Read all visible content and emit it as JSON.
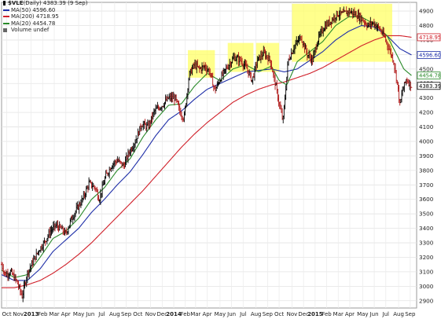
{
  "legend": {
    "symbol": "$VLE",
    "title_rest": " (Daily) 4383.39 (9 Sep)",
    "items": [
      {
        "label": "MA(50) 4596.60",
        "color": "#1f2fa8"
      },
      {
        "label": "MA(200) 4718.95",
        "color": "#d0202a"
      },
      {
        "label": "MA(20) 4454.78",
        "color": "#2a8a2a"
      },
      {
        "label": "Volume undef",
        "color": "#666666"
      }
    ]
  },
  "chart_data": {
    "type": "line",
    "title": "$VLE (Daily) 4383.39 (9 Sep)",
    "xlabel": "",
    "ylabel": "",
    "ylim": [
      2850,
      4960
    ],
    "grid": true,
    "legend_position": "top-left",
    "y_ticks": [
      2900,
      3000,
      3100,
      3200,
      3300,
      3400,
      3500,
      3600,
      3700,
      3800,
      3900,
      4000,
      4100,
      4200,
      4300,
      4400,
      4500,
      4600,
      4700,
      4800,
      4900
    ],
    "y_tick_labels": [
      "2900",
      "3000",
      "3100",
      "3200",
      "3300",
      "3400",
      "3500",
      "3600",
      "3700",
      "3800",
      "3900",
      "4000",
      "4100",
      "4200",
      "4300",
      "4400",
      "4500",
      "4600",
      "4700",
      "4800",
      "4900"
    ],
    "x_labels": [
      {
        "label": "Oct",
        "pos": 0.4
      },
      {
        "label": "Nov",
        "pos": 1.3
      },
      {
        "label": "2013",
        "pos": 2.3,
        "bold": true
      },
      {
        "label": "Feb",
        "pos": 3.2
      },
      {
        "label": "Mar",
        "pos": 4.1
      },
      {
        "label": "Apr",
        "pos": 5.0
      },
      {
        "label": "May",
        "pos": 6.0
      },
      {
        "label": "Jun",
        "pos": 6.9
      },
      {
        "label": "Jul",
        "pos": 7.8
      },
      {
        "label": "Aug",
        "pos": 8.8
      },
      {
        "label": "Sep",
        "pos": 9.7
      },
      {
        "label": "Oct",
        "pos": 10.6
      },
      {
        "label": "Nov",
        "pos": 11.6
      },
      {
        "label": "Dec",
        "pos": 12.5
      },
      {
        "label": "2014",
        "pos": 13.4,
        "bold": true
      },
      {
        "label": "Feb",
        "pos": 14.3
      },
      {
        "label": "Mar",
        "pos": 15.1
      },
      {
        "label": "Apr",
        "pos": 16.0
      },
      {
        "label": "May",
        "pos": 17.0
      },
      {
        "label": "Jun",
        "pos": 17.9
      },
      {
        "label": "Jul",
        "pos": 18.8
      },
      {
        "label": "Aug",
        "pos": 19.8
      },
      {
        "label": "Sep",
        "pos": 20.7
      },
      {
        "label": "Oct",
        "pos": 21.6
      },
      {
        "label": "Nov",
        "pos": 22.6
      },
      {
        "label": "Dec",
        "pos": 23.5
      },
      {
        "label": "2015",
        "pos": 24.4,
        "bold": true
      },
      {
        "label": "Feb",
        "pos": 25.3
      },
      {
        "label": "Mar",
        "pos": 26.2
      },
      {
        "label": "Apr",
        "pos": 27.1
      },
      {
        "label": "May",
        "pos": 28.1
      },
      {
        "label": "Jun",
        "pos": 29.0
      },
      {
        "label": "Jul",
        "pos": 29.9
      },
      {
        "label": "Aug",
        "pos": 30.9
      },
      {
        "label": "Sep",
        "pos": 31.8
      }
    ],
    "x_range": [
      0,
      32.3
    ],
    "highlight_zones": [
      {
        "x0": 14.5,
        "x1": 16.6,
        "y0": 4440,
        "y1": 4630
      },
      {
        "x0": 17.6,
        "x1": 19.6,
        "y0": 4480,
        "y1": 4680
      },
      {
        "x0": 19.8,
        "x1": 21.6,
        "y0": 4480,
        "y1": 4680
      },
      {
        "x0": 22.6,
        "x1": 30.4,
        "y0": 4550,
        "y1": 4950
      }
    ],
    "price_anchors": [
      [
        0,
        3150
      ],
      [
        0.3,
        3080
      ],
      [
        0.7,
        3100
      ],
      [
        1.2,
        3030
      ],
      [
        1.6,
        2930
      ],
      [
        2.0,
        3090
      ],
      [
        2.5,
        3180
      ],
      [
        2.9,
        3250
      ],
      [
        3.3,
        3300
      ],
      [
        3.8,
        3380
      ],
      [
        4.2,
        3420
      ],
      [
        4.6,
        3400
      ],
      [
        5.0,
        3360
      ],
      [
        5.4,
        3460
      ],
      [
        5.9,
        3540
      ],
      [
        6.3,
        3600
      ],
      [
        6.8,
        3710
      ],
      [
        7.3,
        3680
      ],
      [
        7.6,
        3600
      ],
      [
        8.1,
        3760
      ],
      [
        8.6,
        3840
      ],
      [
        9.0,
        3870
      ],
      [
        9.5,
        3830
      ],
      [
        9.9,
        3920
      ],
      [
        10.4,
        4000
      ],
      [
        10.9,
        4120
      ],
      [
        11.4,
        4100
      ],
      [
        11.9,
        4210
      ],
      [
        12.5,
        4250
      ],
      [
        13.0,
        4300
      ],
      [
        13.5,
        4300
      ],
      [
        13.9,
        4200
      ],
      [
        14.2,
        4160
      ],
      [
        14.6,
        4460
      ],
      [
        15.0,
        4530
      ],
      [
        15.4,
        4500
      ],
      [
        15.8,
        4520
      ],
      [
        16.2,
        4480
      ],
      [
        16.6,
        4350
      ],
      [
        17.0,
        4430
      ],
      [
        17.6,
        4520
      ],
      [
        18.1,
        4580
      ],
      [
        18.6,
        4560
      ],
      [
        19.1,
        4500
      ],
      [
        19.5,
        4420
      ],
      [
        19.9,
        4560
      ],
      [
        20.4,
        4610
      ],
      [
        20.9,
        4560
      ],
      [
        21.3,
        4400
      ],
      [
        21.6,
        4260
      ],
      [
        21.9,
        4140
      ],
      [
        22.3,
        4560
      ],
      [
        22.8,
        4660
      ],
      [
        23.3,
        4720
      ],
      [
        23.8,
        4600
      ],
      [
        24.2,
        4560
      ],
      [
        24.6,
        4700
      ],
      [
        25.1,
        4790
      ],
      [
        25.6,
        4830
      ],
      [
        26.1,
        4880
      ],
      [
        26.6,
        4880
      ],
      [
        27.0,
        4900
      ],
      [
        27.5,
        4880
      ],
      [
        28.0,
        4850
      ],
      [
        28.5,
        4800
      ],
      [
        28.9,
        4820
      ],
      [
        29.4,
        4780
      ],
      [
        29.8,
        4720
      ],
      [
        30.2,
        4630
      ],
      [
        30.5,
        4560
      ],
      [
        30.8,
        4400
      ],
      [
        31.0,
        4250
      ],
      [
        31.2,
        4350
      ],
      [
        31.5,
        4430
      ],
      [
        31.9,
        4383
      ]
    ],
    "ma_series": [
      {
        "name": "MA(20)",
        "color": "#2a8a2a",
        "anchors": [
          [
            0,
            3110
          ],
          [
            1.0,
            3060
          ],
          [
            2.0,
            3080
          ],
          [
            3.0,
            3200
          ],
          [
            4.0,
            3330
          ],
          [
            5.0,
            3380
          ],
          [
            6.0,
            3470
          ],
          [
            7.0,
            3600
          ],
          [
            8.0,
            3680
          ],
          [
            9.0,
            3800
          ],
          [
            10.0,
            3880
          ],
          [
            11.0,
            4030
          ],
          [
            12.0,
            4150
          ],
          [
            13.0,
            4250
          ],
          [
            14.0,
            4260
          ],
          [
            15.0,
            4380
          ],
          [
            16.0,
            4470
          ],
          [
            17.0,
            4420
          ],
          [
            18.0,
            4500
          ],
          [
            19.0,
            4530
          ],
          [
            20.0,
            4480
          ],
          [
            21.0,
            4520
          ],
          [
            21.6,
            4420
          ],
          [
            22.2,
            4390
          ],
          [
            23.0,
            4550
          ],
          [
            24.0,
            4620
          ],
          [
            25.0,
            4690
          ],
          [
            26.0,
            4800
          ],
          [
            27.0,
            4860
          ],
          [
            28.0,
            4860
          ],
          [
            29.0,
            4810
          ],
          [
            30.0,
            4730
          ],
          [
            30.8,
            4590
          ],
          [
            31.3,
            4500
          ],
          [
            31.9,
            4455
          ]
        ]
      },
      {
        "name": "MA(50)",
        "color": "#1f2fa8",
        "anchors": [
          [
            0,
            3080
          ],
          [
            1.0,
            3040
          ],
          [
            2.0,
            3040
          ],
          [
            3.0,
            3120
          ],
          [
            4.0,
            3240
          ],
          [
            5.0,
            3320
          ],
          [
            6.0,
            3400
          ],
          [
            7.0,
            3510
          ],
          [
            8.0,
            3600
          ],
          [
            9.0,
            3700
          ],
          [
            10.0,
            3790
          ],
          [
            11.0,
            3910
          ],
          [
            12.0,
            4040
          ],
          [
            13.0,
            4150
          ],
          [
            14.0,
            4210
          ],
          [
            15.0,
            4290
          ],
          [
            16.0,
            4360
          ],
          [
            17.0,
            4400
          ],
          [
            18.0,
            4440
          ],
          [
            19.0,
            4480
          ],
          [
            20.0,
            4490
          ],
          [
            21.0,
            4500
          ],
          [
            22.0,
            4480
          ],
          [
            23.0,
            4500
          ],
          [
            24.0,
            4560
          ],
          [
            25.0,
            4620
          ],
          [
            26.0,
            4700
          ],
          [
            27.0,
            4760
          ],
          [
            28.0,
            4800
          ],
          [
            29.0,
            4790
          ],
          [
            30.0,
            4730
          ],
          [
            31.0,
            4640
          ],
          [
            31.9,
            4597
          ]
        ]
      },
      {
        "name": "MA(200)",
        "color": "#d0202a",
        "anchors": [
          [
            0,
            2990
          ],
          [
            1.0,
            2990
          ],
          [
            2.0,
            3010
          ],
          [
            3.0,
            3040
          ],
          [
            4.0,
            3090
          ],
          [
            5.0,
            3150
          ],
          [
            6.0,
            3220
          ],
          [
            7.0,
            3300
          ],
          [
            8.0,
            3390
          ],
          [
            9.0,
            3480
          ],
          [
            10.0,
            3570
          ],
          [
            11.0,
            3660
          ],
          [
            12.0,
            3760
          ],
          [
            13.0,
            3860
          ],
          [
            14.0,
            3960
          ],
          [
            15.0,
            4050
          ],
          [
            16.0,
            4130
          ],
          [
            17.0,
            4200
          ],
          [
            18.0,
            4270
          ],
          [
            19.0,
            4320
          ],
          [
            20.0,
            4360
          ],
          [
            21.0,
            4390
          ],
          [
            22.0,
            4410
          ],
          [
            23.0,
            4440
          ],
          [
            24.0,
            4470
          ],
          [
            25.0,
            4510
          ],
          [
            26.0,
            4560
          ],
          [
            27.0,
            4610
          ],
          [
            28.0,
            4660
          ],
          [
            29.0,
            4700
          ],
          [
            30.0,
            4730
          ],
          [
            31.0,
            4730
          ],
          [
            31.9,
            4719
          ]
        ]
      }
    ],
    "right_value_labels": [
      {
        "label": "4718.95",
        "value": 4718.95,
        "color": "#d0202a"
      },
      {
        "label": "4596.60",
        "value": 4596.6,
        "color": "#1f2fa8"
      },
      {
        "label": "4454.78",
        "value": 4454.78,
        "color": "#2a8a2a"
      },
      {
        "label": "4383.39",
        "value": 4383.39,
        "color": "#000000"
      }
    ]
  }
}
